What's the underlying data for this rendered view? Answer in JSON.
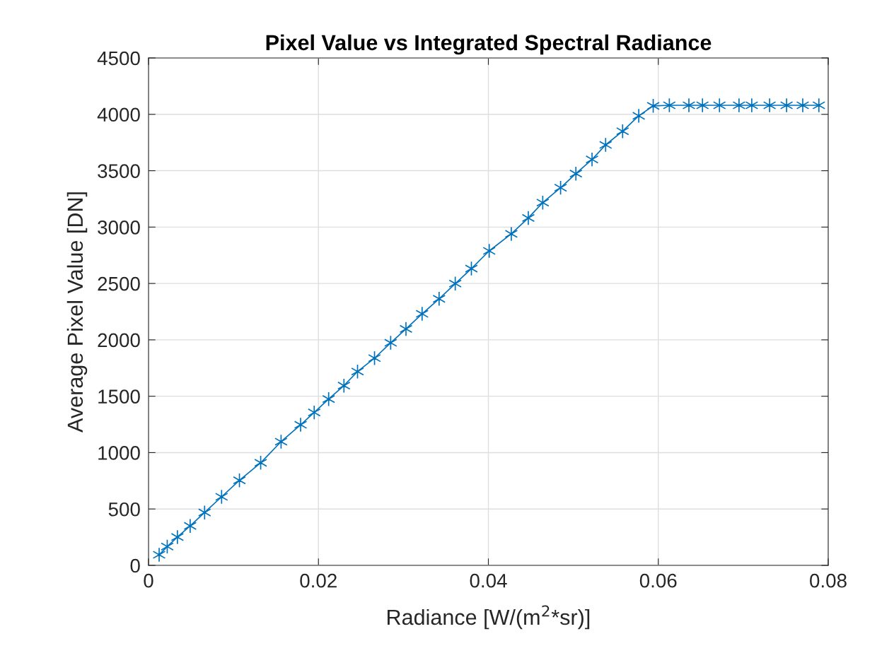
{
  "chart_data": {
    "type": "line",
    "title": "Pixel Value vs Integrated Spectral Radiance",
    "xlabel": "Radiance [W/(m$^{2}$*sr)]",
    "ylabel": "Average Pixel Value [DN]",
    "series": [
      {
        "color": "#0072bd",
        "x": [
          0.00125,
          0.0022,
          0.0034,
          0.0049,
          0.0066,
          0.0086,
          0.0107,
          0.0132,
          0.0156,
          0.0179,
          0.0195,
          0.0212,
          0.023,
          0.0246,
          0.0266,
          0.0285,
          0.0303,
          0.0322,
          0.0342,
          0.0361,
          0.038,
          0.0401,
          0.0427,
          0.0447,
          0.0464,
          0.0485,
          0.0503,
          0.0522,
          0.0538,
          0.0558,
          0.0577,
          0.0594,
          0.0613,
          0.0636,
          0.0652,
          0.0672,
          0.0695,
          0.071,
          0.0731,
          0.0751,
          0.077,
          0.0789
        ],
        "values": [
          94,
          167,
          251,
          350,
          469,
          608,
          754,
          910,
          1097,
          1247,
          1356,
          1475,
          1594,
          1719,
          1838,
          1974,
          2097,
          2231,
          2364,
          2499,
          2632,
          2789,
          2940,
          3081,
          3217,
          3349,
          3474,
          3600,
          3729,
          3850,
          3987,
          4075,
          4080,
          4080,
          4080,
          4080,
          4080,
          4080,
          4080,
          4080,
          4080,
          4080
        ]
      }
    ],
    "xlim": [
      0,
      0.08
    ],
    "xticks": [
      0,
      0.02,
      0.04,
      0.06,
      0.08
    ],
    "ylim": [
      0,
      4500
    ],
    "yticks": [
      0,
      500,
      1000,
      1500,
      2000,
      2500,
      3000,
      3500,
      4000,
      4500
    ],
    "grid": true,
    "marker": "cross",
    "line_style": "solid"
  }
}
